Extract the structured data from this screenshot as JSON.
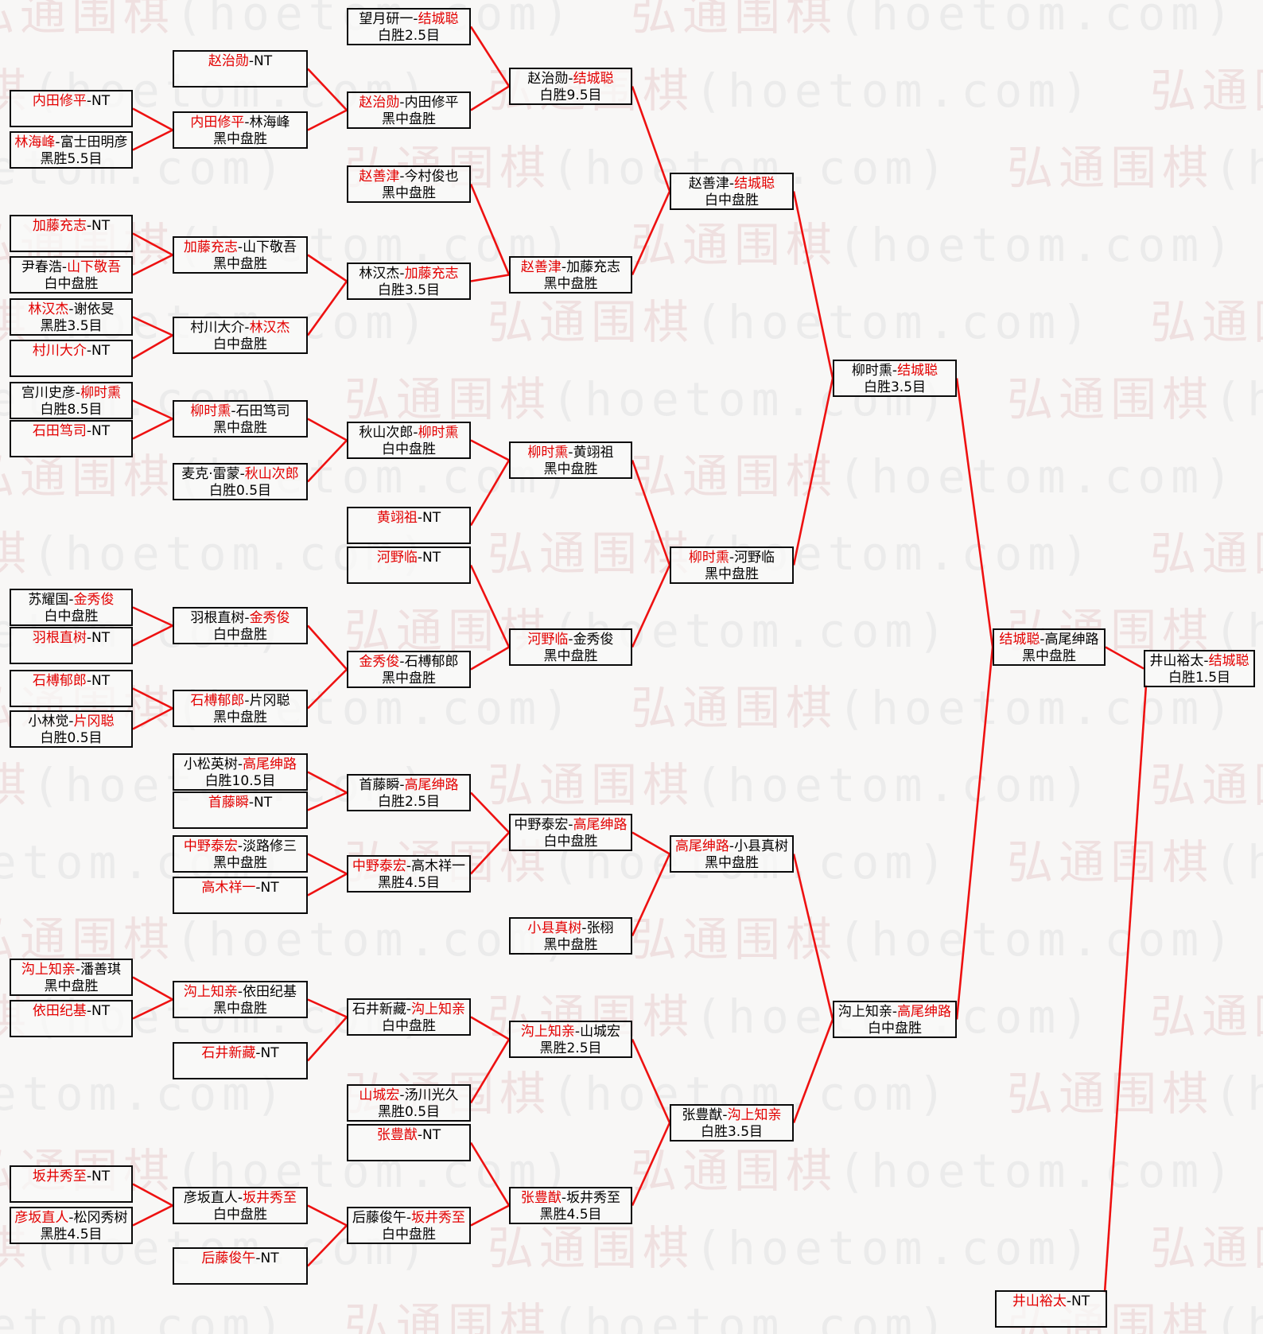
{
  "watermark": {
    "text_cjk": "弘通围棋",
    "text_latin": "(hoetom.com)"
  },
  "colors": {
    "winner_text": "#e30000",
    "connector_line": "#ee1111",
    "box_border": "#000000",
    "background": "#f8f7f6"
  },
  "bracket": {
    "matches": [
      {
        "id": "A1",
        "round": 1,
        "p1": "内田修平",
        "p2": "NT",
        "result": "",
        "winner": "p1"
      },
      {
        "id": "A2",
        "round": 1,
        "p1": "林海峰",
        "p2": "富士田明彦",
        "result": "黑胜5.5目",
        "winner": "p1"
      },
      {
        "id": "A3",
        "round": 1,
        "p1": "加藤充志",
        "p2": "NT",
        "result": "",
        "winner": "p1"
      },
      {
        "id": "A4",
        "round": 1,
        "p1": "尹春浩",
        "p2": "山下敬吾",
        "result": "白中盘胜",
        "winner": "p2"
      },
      {
        "id": "A5",
        "round": 1,
        "p1": "林汉杰",
        "p2": "谢依旻",
        "result": "黑胜3.5目",
        "winner": "p1"
      },
      {
        "id": "A6",
        "round": 1,
        "p1": "村川大介",
        "p2": "NT",
        "result": "",
        "winner": "p1"
      },
      {
        "id": "A7",
        "round": 1,
        "p1": "宫川史彦",
        "p2": "柳时熏",
        "result": "白胜8.5目",
        "winner": "p2"
      },
      {
        "id": "A8",
        "round": 1,
        "p1": "石田笃司",
        "p2": "NT",
        "result": "",
        "winner": "p1"
      },
      {
        "id": "A9",
        "round": 1,
        "p1": "苏耀国",
        "p2": "金秀俊",
        "result": "白中盘胜",
        "winner": "p2"
      },
      {
        "id": "A10",
        "round": 1,
        "p1": "羽根直树",
        "p2": "NT",
        "result": "",
        "winner": "p1"
      },
      {
        "id": "A11",
        "round": 1,
        "p1": "石榑郁郎",
        "p2": "NT",
        "result": "",
        "winner": "p1"
      },
      {
        "id": "A12",
        "round": 1,
        "p1": "小林觉",
        "p2": "片冈聪",
        "result": "白胜0.5目",
        "winner": "p2"
      },
      {
        "id": "A13",
        "round": 1,
        "p1": "沟上知亲",
        "p2": "潘善琪",
        "result": "黑中盘胜",
        "winner": "p1"
      },
      {
        "id": "A14",
        "round": 1,
        "p1": "依田纪基",
        "p2": "NT",
        "result": "",
        "winner": "p1"
      },
      {
        "id": "A15",
        "round": 1,
        "p1": "坂井秀至",
        "p2": "NT",
        "result": "",
        "winner": "p1"
      },
      {
        "id": "A16",
        "round": 1,
        "p1": "彦坂直人",
        "p2": "松冈秀树",
        "result": "黑胜4.5目",
        "winner": "p1"
      },
      {
        "id": "B1",
        "round": 2,
        "p1": "赵治勋",
        "p2": "NT",
        "result": "",
        "winner": "p1"
      },
      {
        "id": "B2",
        "round": 2,
        "p1": "内田修平",
        "p2": "林海峰",
        "result": "黑中盘胜",
        "winner": "p1"
      },
      {
        "id": "B3",
        "round": 2,
        "p1": "加藤充志",
        "p2": "山下敬吾",
        "result": "黑中盘胜",
        "winner": "p1"
      },
      {
        "id": "B4",
        "round": 2,
        "p1": "村川大介",
        "p2": "林汉杰",
        "result": "白中盘胜",
        "winner": "p2"
      },
      {
        "id": "B5",
        "round": 2,
        "p1": "柳时熏",
        "p2": "石田笃司",
        "result": "黑中盘胜",
        "winner": "p1"
      },
      {
        "id": "B6",
        "round": 2,
        "p1": "麦克·雷蒙",
        "p2": "秋山次郎",
        "result": "白胜0.5目",
        "winner": "p2"
      },
      {
        "id": "B7",
        "round": 2,
        "p1": "羽根直树",
        "p2": "金秀俊",
        "result": "白中盘胜",
        "winner": "p2"
      },
      {
        "id": "B8",
        "round": 2,
        "p1": "石榑郁郎",
        "p2": "片冈聪",
        "result": "黑中盘胜",
        "winner": "p1"
      },
      {
        "id": "B9",
        "round": 2,
        "p1": "小松英树",
        "p2": "高尾绅路",
        "result": "白胜10.5目",
        "winner": "p2"
      },
      {
        "id": "B10",
        "round": 2,
        "p1": "首藤瞬",
        "p2": "NT",
        "result": "",
        "winner": "p1"
      },
      {
        "id": "B11",
        "round": 2,
        "p1": "中野泰宏",
        "p2": "淡路修三",
        "result": "黑中盘胜",
        "winner": "p1"
      },
      {
        "id": "B12",
        "round": 2,
        "p1": "高木祥一",
        "p2": "NT",
        "result": "",
        "winner": "p1"
      },
      {
        "id": "B13",
        "round": 2,
        "p1": "沟上知亲",
        "p2": "依田纪基",
        "result": "黑中盘胜",
        "winner": "p1"
      },
      {
        "id": "B14",
        "round": 2,
        "p1": "石井新藏",
        "p2": "NT",
        "result": "",
        "winner": "p1"
      },
      {
        "id": "B15",
        "round": 2,
        "p1": "彦坂直人",
        "p2": "坂井秀至",
        "result": "白中盘胜",
        "winner": "p2"
      },
      {
        "id": "B16",
        "round": 2,
        "p1": "后藤俊午",
        "p2": "NT",
        "result": "",
        "winner": "p1"
      },
      {
        "id": "C1",
        "round": 3,
        "p1": "望月研一",
        "p2": "结城聪",
        "result": "白胜2.5目",
        "winner": "p2"
      },
      {
        "id": "C2",
        "round": 3,
        "p1": "赵治勋",
        "p2": "内田修平",
        "result": "黑中盘胜",
        "winner": "p1"
      },
      {
        "id": "C3",
        "round": 3,
        "p1": "赵善津",
        "p2": "今村俊也",
        "result": "黑中盘胜",
        "winner": "p1"
      },
      {
        "id": "C4",
        "round": 3,
        "p1": "林汉杰",
        "p2": "加藤充志",
        "result": "白胜3.5目",
        "winner": "p2"
      },
      {
        "id": "C5",
        "round": 3,
        "p1": "秋山次郎",
        "p2": "柳时熏",
        "result": "白中盘胜",
        "winner": "p2"
      },
      {
        "id": "C6",
        "round": 3,
        "p1": "黄翊祖",
        "p2": "NT",
        "result": "",
        "winner": "p1"
      },
      {
        "id": "C7",
        "round": 3,
        "p1": "河野临",
        "p2": "NT",
        "result": "",
        "winner": "p1"
      },
      {
        "id": "C8",
        "round": 3,
        "p1": "金秀俊",
        "p2": "石榑郁郎",
        "result": "黑中盘胜",
        "winner": "p1"
      },
      {
        "id": "C9",
        "round": 3,
        "p1": "首藤瞬",
        "p2": "高尾绅路",
        "result": "白胜2.5目",
        "winner": "p2"
      },
      {
        "id": "C10",
        "round": 3,
        "p1": "中野泰宏",
        "p2": "高木祥一",
        "result": "黑胜4.5目",
        "winner": "p1"
      },
      {
        "id": "C11",
        "round": 3,
        "p1": "石井新藏",
        "p2": "沟上知亲",
        "result": "白中盘胜",
        "winner": "p2"
      },
      {
        "id": "C12",
        "round": 3,
        "p1": "山城宏",
        "p2": "汤川光久",
        "result": "黑胜0.5目",
        "winner": "p1"
      },
      {
        "id": "C13",
        "round": 3,
        "p1": "张豊猷",
        "p2": "NT",
        "result": "",
        "winner": "p1"
      },
      {
        "id": "C14",
        "round": 3,
        "p1": "后藤俊午",
        "p2": "坂井秀至",
        "result": "白中盘胜",
        "winner": "p2"
      },
      {
        "id": "D1",
        "round": 4,
        "p1": "赵治勋",
        "p2": "结城聪",
        "result": "白胜9.5目",
        "winner": "p2"
      },
      {
        "id": "D2",
        "round": 4,
        "p1": "赵善津",
        "p2": "加藤充志",
        "result": "黑中盘胜",
        "winner": "p1"
      },
      {
        "id": "D3",
        "round": 4,
        "p1": "柳时熏",
        "p2": "黄翊祖",
        "result": "黑中盘胜",
        "winner": "p1"
      },
      {
        "id": "D4",
        "round": 4,
        "p1": "河野临",
        "p2": "金秀俊",
        "result": "黑中盘胜",
        "winner": "p1"
      },
      {
        "id": "D5",
        "round": 4,
        "p1": "中野泰宏",
        "p2": "高尾绅路",
        "result": "白中盘胜",
        "winner": "p2"
      },
      {
        "id": "D6",
        "round": 4,
        "p1": "小县真树",
        "p2": "张栩",
        "result": "黑中盘胜",
        "winner": "p1"
      },
      {
        "id": "D7",
        "round": 4,
        "p1": "沟上知亲",
        "p2": "山城宏",
        "result": "黑胜2.5目",
        "winner": "p1"
      },
      {
        "id": "D8",
        "round": 4,
        "p1": "张豊猷",
        "p2": "坂井秀至",
        "result": "黑胜4.5目",
        "winner": "p1"
      },
      {
        "id": "E1",
        "round": 5,
        "p1": "赵善津",
        "p2": "结城聪",
        "result": "白中盘胜",
        "winner": "p2"
      },
      {
        "id": "E2",
        "round": 5,
        "p1": "柳时熏",
        "p2": "河野临",
        "result": "黑中盘胜",
        "winner": "p1"
      },
      {
        "id": "E3",
        "round": 5,
        "p1": "高尾绅路",
        "p2": "小县真树",
        "result": "黑中盘胜",
        "winner": "p1"
      },
      {
        "id": "E4",
        "round": 5,
        "p1": "张豊猷",
        "p2": "沟上知亲",
        "result": "白胜3.5目",
        "winner": "p2"
      },
      {
        "id": "F1",
        "round": 6,
        "p1": "柳时熏",
        "p2": "结城聪",
        "result": "白胜3.5目",
        "winner": "p2"
      },
      {
        "id": "F2",
        "round": 6,
        "p1": "沟上知亲",
        "p2": "高尾绅路",
        "result": "白中盘胜",
        "winner": "p2"
      },
      {
        "id": "G1",
        "round": 7,
        "p1": "结城聪",
        "p2": "高尾绅路",
        "result": "黑中盘胜",
        "winner": "p1"
      },
      {
        "id": "H1",
        "round": 8,
        "p1": "井山裕太",
        "p2": "结城聪",
        "result": "白胜1.5目",
        "winner": "p2"
      },
      {
        "id": "N1",
        "round": 8,
        "p1": "井山裕太",
        "p2": "NT",
        "result": "",
        "winner": "p1"
      }
    ],
    "connections": [
      [
        "A1",
        "B2"
      ],
      [
        "A2",
        "B2"
      ],
      [
        "B1",
        "C2"
      ],
      [
        "B2",
        "C2"
      ],
      [
        "C1",
        "D1"
      ],
      [
        "C2",
        "D1"
      ],
      [
        "A3",
        "B3"
      ],
      [
        "A4",
        "B3"
      ],
      [
        "A5",
        "B4"
      ],
      [
        "A6",
        "B4"
      ],
      [
        "B3",
        "C4"
      ],
      [
        "B4",
        "C4"
      ],
      [
        "C3",
        "D2"
      ],
      [
        "C4",
        "D2"
      ],
      [
        "D1",
        "E1"
      ],
      [
        "D2",
        "E1"
      ],
      [
        "A7",
        "B5"
      ],
      [
        "A8",
        "B5"
      ],
      [
        "B5",
        "C5"
      ],
      [
        "B6",
        "C5"
      ],
      [
        "C5",
        "D3"
      ],
      [
        "C6",
        "D3"
      ],
      [
        "C7",
        "D4"
      ],
      [
        "C8",
        "D4"
      ],
      [
        "D3",
        "E2"
      ],
      [
        "D4",
        "E2"
      ],
      [
        "E1",
        "F1"
      ],
      [
        "E2",
        "F1"
      ],
      [
        "A9",
        "B7"
      ],
      [
        "A10",
        "B7"
      ],
      [
        "A11",
        "B8"
      ],
      [
        "A12",
        "B8"
      ],
      [
        "B7",
        "C8"
      ],
      [
        "B8",
        "C8"
      ],
      [
        "B9",
        "C9"
      ],
      [
        "B10",
        "C9"
      ],
      [
        "B11",
        "C10"
      ],
      [
        "B12",
        "C10"
      ],
      [
        "C9",
        "D5"
      ],
      [
        "C10",
        "D5"
      ],
      [
        "D5",
        "E3"
      ],
      [
        "D6",
        "E3"
      ],
      [
        "A13",
        "B13"
      ],
      [
        "A14",
        "B13"
      ],
      [
        "B13",
        "C11"
      ],
      [
        "B14",
        "C11"
      ],
      [
        "C11",
        "D7"
      ],
      [
        "C12",
        "D7"
      ],
      [
        "C13",
        "D8"
      ],
      [
        "C14",
        "D8"
      ],
      [
        "A15",
        "B15"
      ],
      [
        "A16",
        "B15"
      ],
      [
        "B15",
        "C14"
      ],
      [
        "B16",
        "C14"
      ],
      [
        "D7",
        "E4"
      ],
      [
        "D8",
        "E4"
      ],
      [
        "E3",
        "F2"
      ],
      [
        "E4",
        "F2"
      ],
      [
        "F1",
        "G1"
      ],
      [
        "F2",
        "G1"
      ],
      [
        "G1",
        "H1"
      ],
      [
        "N1",
        "H1"
      ]
    ]
  }
}
